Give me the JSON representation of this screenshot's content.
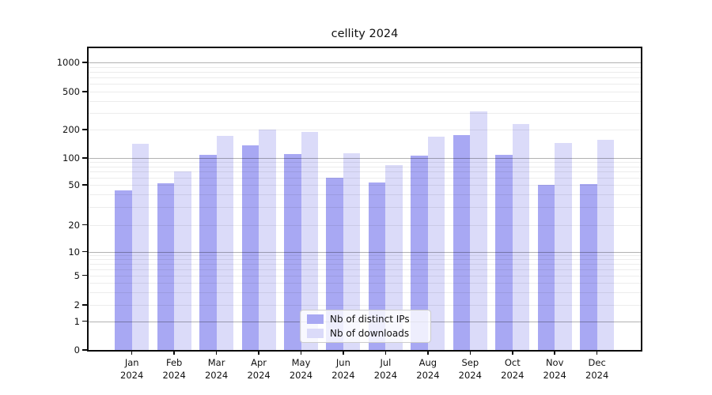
{
  "chart_data": {
    "type": "bar",
    "title": "cellity 2024",
    "year": "2024",
    "categories": [
      "Jan",
      "Feb",
      "Mar",
      "Apr",
      "May",
      "Jun",
      "Jul",
      "Aug",
      "Sep",
      "Oct",
      "Nov",
      "Dec"
    ],
    "series": [
      {
        "name": "Nb of distinct IPs",
        "color": "#a8a8f3",
        "values": [
          44,
          52,
          107,
          135,
          110,
          60,
          53,
          106,
          174,
          108,
          50,
          51
        ]
      },
      {
        "name": "Nb of downloads",
        "color": "#dbdbf9",
        "values": [
          140,
          70,
          172,
          200,
          188,
          112,
          83,
          168,
          310,
          228,
          145,
          154
        ]
      }
    ],
    "yscale": "symlog",
    "yticks": [
      1000,
      500,
      200,
      100,
      50,
      20,
      10,
      5,
      2,
      1,
      0
    ],
    "ylim": [
      0,
      1250
    ],
    "grid": "both",
    "legend_position": "lower center"
  }
}
